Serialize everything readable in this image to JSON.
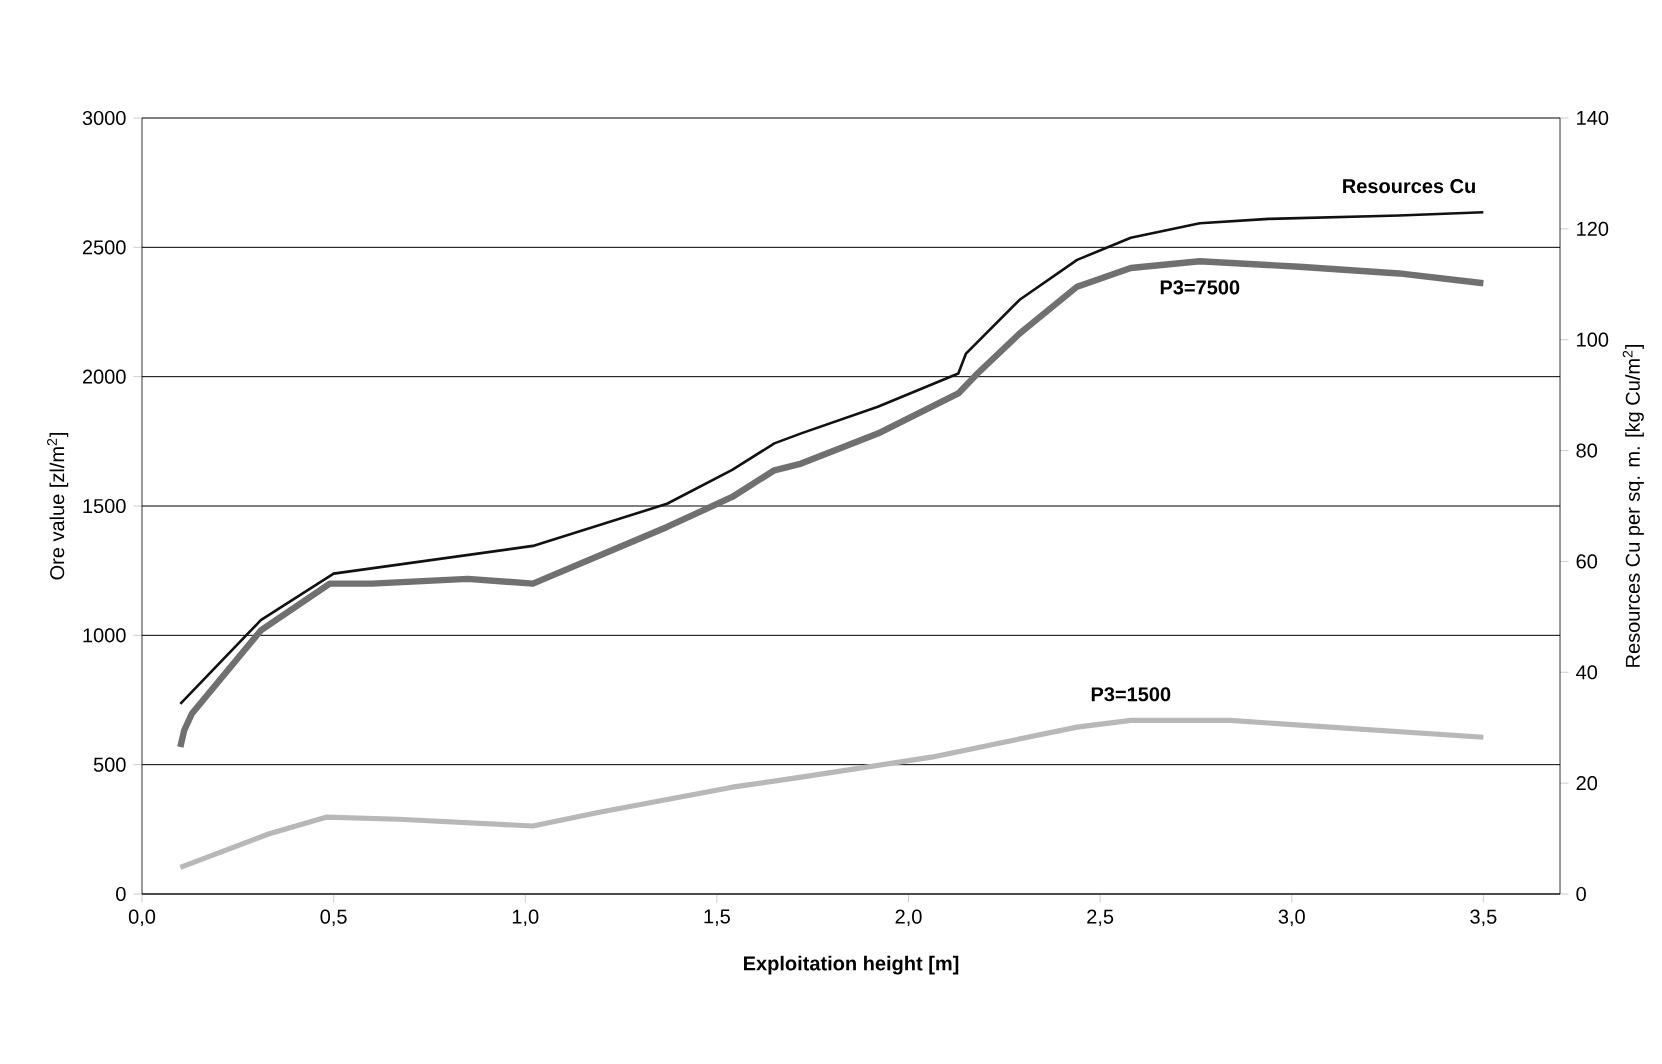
{
  "chart_data": {
    "type": "line",
    "xlabel": "Exploitation height [m]",
    "ylabel": "Ore value [zl/m$^{2}$]",
    "y2label": "Resources Cu per sq. m. [kg Cu/m$^{2}$]",
    "xlim": [
      0,
      3.7
    ],
    "ylim": [
      0,
      3000
    ],
    "y2lim": [
      0,
      140
    ],
    "xticks": [
      {
        "value": 0,
        "label": "0,0"
      },
      {
        "value": 0.5,
        "label": "0,5"
      },
      {
        "value": 1,
        "label": "1,0"
      },
      {
        "value": 1.5,
        "label": "1,5"
      },
      {
        "value": 2,
        "label": "2,0"
      },
      {
        "value": 2.5,
        "label": "2,5"
      },
      {
        "value": 3,
        "label": "3,0"
      },
      {
        "value": 3.5,
        "label": "3,5"
      }
    ],
    "yticks": [
      0,
      500,
      1000,
      1500,
      2000,
      2500,
      3000
    ],
    "y2ticks": [
      0,
      20,
      40,
      60,
      80,
      100,
      120,
      140
    ],
    "grid": "y",
    "series": [
      {
        "name": "Resources Cu",
        "color": "#111111",
        "axis": "y2",
        "x": [
          0.1,
          0.31,
          0.5,
          1.02,
          1.37,
          1.54,
          1.65,
          1.72,
          1.92,
          2.13,
          2.15,
          2.29,
          2.44,
          2.58,
          2.76,
          2.94,
          3.28,
          3.5
        ],
        "values": [
          34.3,
          49.4,
          57.8,
          62.8,
          70.4,
          76.5,
          81.3,
          83.1,
          87.9,
          93.9,
          97.5,
          107.2,
          114.4,
          118.4,
          121.0,
          121.8,
          122.4,
          123.0
        ]
      },
      {
        "name": "P3=7500",
        "color": "#707070",
        "x": [
          0.1,
          0.11,
          0.13,
          0.31,
          0.49,
          0.6,
          0.85,
          1.02,
          1.37,
          1.54,
          1.65,
          1.72,
          1.92,
          2.13,
          2.18,
          2.29,
          2.44,
          2.58,
          2.76,
          3.02,
          3.28,
          3.5
        ],
        "values": [
          568,
          632,
          697,
          1019,
          1200,
          1200,
          1218,
          1200,
          1419,
          1535,
          1638,
          1664,
          1780,
          1935,
          2012,
          2167,
          2348,
          2420,
          2446,
          2425,
          2399,
          2361
        ]
      },
      {
        "name": "P3=1500",
        "color": "#b8b8b8",
        "x": [
          0.1,
          0.33,
          0.48,
          0.67,
          1.02,
          1.19,
          1.54,
          1.72,
          2.06,
          2.23,
          2.44,
          2.58,
          2.84,
          3.1,
          3.5
        ],
        "values": [
          103,
          232,
          297,
          289,
          263,
          315,
          413,
          452,
          529,
          581,
          645,
          671,
          671,
          645,
          606
        ]
      }
    ]
  }
}
